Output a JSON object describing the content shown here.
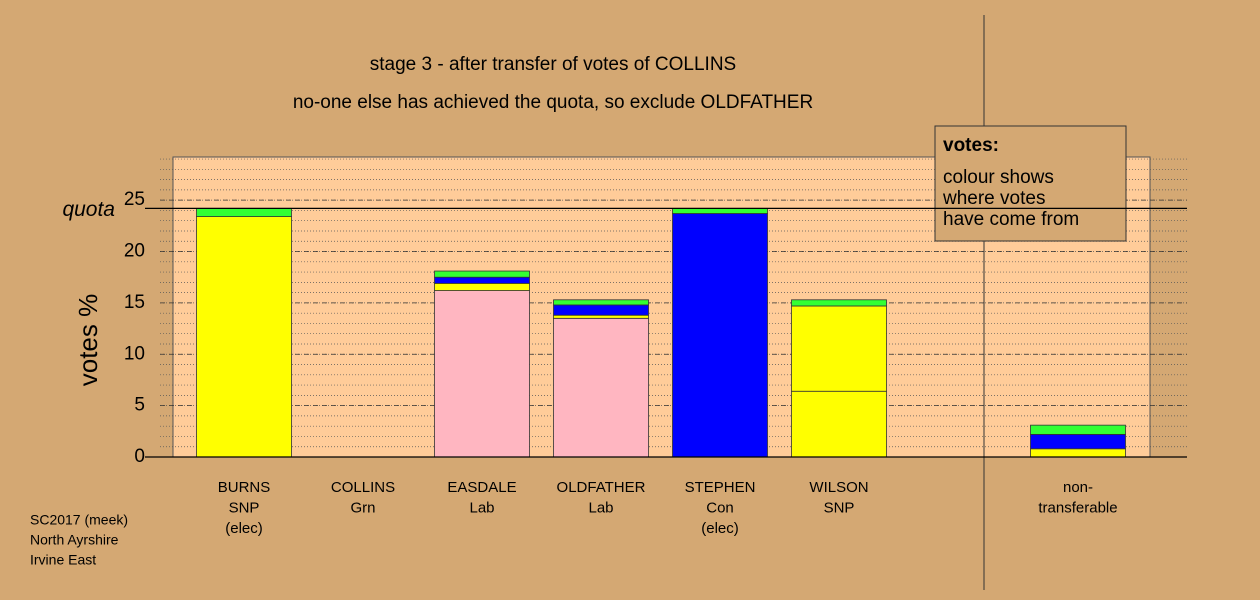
{
  "chart_data": {
    "type": "stacked_bar",
    "title": "stage 3 - after transfer of votes of COLLINS",
    "subtitle": "no-one else has achieved the quota, so exclude OLDFATHER",
    "y_label": "votes %",
    "categories": [
      [
        "BURNS",
        "SNP",
        "(elec)"
      ],
      [
        "COLLINS",
        "Grn"
      ],
      [
        "EASDALE",
        "Lab"
      ],
      [
        "OLDFATHER",
        "Lab"
      ],
      [
        "STEPHEN",
        "Con",
        "(elec)"
      ],
      [
        "WILSON",
        "SNP"
      ],
      [
        "non-",
        "transferable"
      ]
    ],
    "series": [
      {
        "color": "#ffff00",
        "values": [
          23.4,
          null,
          null,
          null,
          null,
          6.4,
          0.8
        ]
      },
      {
        "color": "#ffb6c1",
        "values": [
          null,
          null,
          16.2,
          13.5,
          null,
          null,
          null
        ]
      },
      {
        "color": "#0000ff",
        "values": [
          null,
          null,
          null,
          null,
          23.7,
          null,
          null
        ]
      },
      {
        "color": "#ffff00",
        "values": [
          null,
          null,
          0.7,
          0.3,
          null,
          8.3,
          null
        ]
      },
      {
        "color": "#0000ff",
        "values": [
          null,
          null,
          0.6,
          1.0,
          null,
          null,
          1.4
        ]
      },
      {
        "color": "#33ff33",
        "values": [
          0.8,
          null,
          0.6,
          0.5,
          0.5,
          0.6,
          0.9
        ]
      }
    ],
    "ylim": [
      0,
      29.2
    ],
    "yticks": [
      0,
      5,
      10,
      15,
      20,
      25
    ],
    "grid": true,
    "quota": {
      "label": "quota",
      "value": 24.2
    },
    "legend_box": {
      "title": "votes:",
      "lines": [
        "colour shows",
        "where votes",
        "have come from"
      ]
    },
    "footer": [
      "SC2017 (meek)",
      "North Ayrshire",
      "Irvine East"
    ]
  }
}
